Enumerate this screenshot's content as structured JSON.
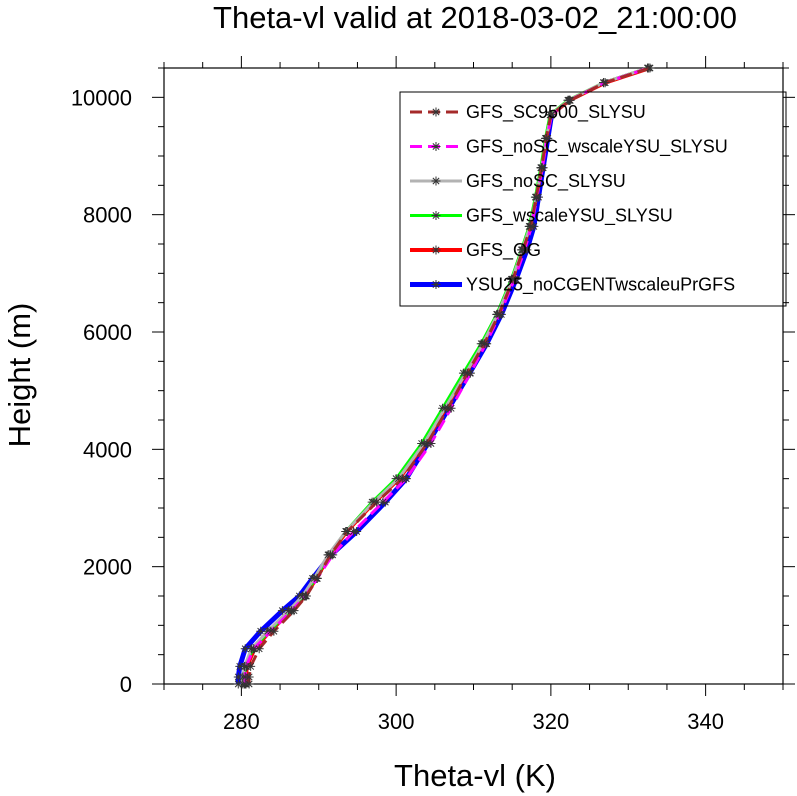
{
  "chart_data": {
    "type": "line",
    "title": "Theta-vl valid at 2018-03-02_21:00:00",
    "xlabel": "Theta-vl (K)",
    "ylabel": "Height (m)",
    "xlim": [
      270,
      350
    ],
    "ylim": [
      0,
      10500
    ],
    "xticks": [
      280,
      300,
      320,
      340
    ],
    "yticks": [
      0,
      2000,
      4000,
      6000,
      8000,
      10000
    ],
    "xtick_labels": [
      "280",
      "300",
      "320",
      "340"
    ],
    "ytick_labels": [
      "0",
      "2000",
      "4000",
      "6000",
      "8000",
      "10000"
    ],
    "grid": false,
    "legend_position": "top-right",
    "series": [
      {
        "name": "GFS_SC9500_SLYSU",
        "color": "#a52a2a",
        "dash": true,
        "points": [
          [
            281.0,
            0
          ],
          [
            281.0,
            120
          ],
          [
            281.2,
            300
          ],
          [
            282.3,
            600
          ],
          [
            284.2,
            900
          ],
          [
            286.8,
            1250
          ],
          [
            288.4,
            1500
          ],
          [
            289.8,
            1800
          ],
          [
            291.5,
            2200
          ],
          [
            293.7,
            2600
          ],
          [
            297.5,
            3100
          ],
          [
            300.8,
            3500
          ],
          [
            304.0,
            4100
          ],
          [
            306.7,
            4700
          ],
          [
            309.2,
            5300
          ],
          [
            311.4,
            5800
          ],
          [
            313.3,
            6300
          ],
          [
            315.1,
            6900
          ],
          [
            316.4,
            7400
          ],
          [
            317.4,
            7800
          ],
          [
            318.1,
            8300
          ],
          [
            318.8,
            8800
          ],
          [
            319.4,
            9300
          ],
          [
            320.0,
            9700
          ],
          [
            322.5,
            9950
          ],
          [
            327.0,
            10250
          ],
          [
            332.8,
            10500
          ]
        ]
      },
      {
        "name": "GFS_noSC_wscaleYSU_SLYSU",
        "color": "#ff00ff",
        "dash": true,
        "points": [
          [
            280.5,
            0
          ],
          [
            280.5,
            120
          ],
          [
            280.6,
            300
          ],
          [
            281.6,
            600
          ],
          [
            283.8,
            900
          ],
          [
            286.5,
            1250
          ],
          [
            288.3,
            1500
          ],
          [
            289.8,
            1800
          ],
          [
            291.8,
            2200
          ],
          [
            294.5,
            2600
          ],
          [
            298.3,
            3100
          ],
          [
            301.3,
            3500
          ],
          [
            304.5,
            4100
          ],
          [
            307.1,
            4700
          ],
          [
            309.6,
            5300
          ],
          [
            311.6,
            5800
          ],
          [
            313.4,
            6300
          ],
          [
            315.3,
            6900
          ],
          [
            316.6,
            7400
          ],
          [
            317.5,
            7800
          ],
          [
            318.2,
            8300
          ],
          [
            318.9,
            8800
          ],
          [
            319.5,
            9300
          ],
          [
            320.1,
            9700
          ],
          [
            322.4,
            9950
          ],
          [
            327.0,
            10250
          ],
          [
            332.6,
            10500
          ]
        ]
      },
      {
        "name": "GFS_noSC_SLYSU",
        "color": "#b3b3b3",
        "dash": false,
        "points": [
          [
            280.2,
            0
          ],
          [
            280.2,
            120
          ],
          [
            280.4,
            300
          ],
          [
            281.3,
            600
          ],
          [
            283.4,
            900
          ],
          [
            286.1,
            1250
          ],
          [
            287.9,
            1500
          ],
          [
            289.4,
            1800
          ],
          [
            291.2,
            2200
          ],
          [
            293.5,
            2600
          ],
          [
            297.1,
            3100
          ],
          [
            300.3,
            3500
          ],
          [
            303.6,
            4100
          ],
          [
            306.3,
            4700
          ],
          [
            309.0,
            5300
          ],
          [
            311.2,
            5800
          ],
          [
            313.1,
            6300
          ],
          [
            315.0,
            6900
          ],
          [
            316.3,
            7400
          ],
          [
            317.3,
            7800
          ],
          [
            318.1,
            8300
          ],
          [
            318.8,
            8800
          ],
          [
            319.4,
            9300
          ],
          [
            320.0,
            9700
          ],
          [
            322.3,
            9950
          ],
          [
            326.8,
            10250
          ],
          [
            332.5,
            10500
          ]
        ]
      },
      {
        "name": "GFS_wscaleYSU_SLYSU",
        "color": "#00ff00",
        "dash": false,
        "points": [
          [
            280.4,
            0
          ],
          [
            280.4,
            120
          ],
          [
            280.5,
            300
          ],
          [
            281.5,
            600
          ],
          [
            283.6,
            900
          ],
          [
            286.3,
            1250
          ],
          [
            288.1,
            1500
          ],
          [
            289.6,
            1800
          ],
          [
            291.3,
            2200
          ],
          [
            293.5,
            2600
          ],
          [
            296.9,
            3100
          ],
          [
            300.0,
            3500
          ],
          [
            303.3,
            4100
          ],
          [
            306.0,
            4700
          ],
          [
            308.7,
            5300
          ],
          [
            311.0,
            5800
          ],
          [
            313.0,
            6300
          ],
          [
            314.9,
            6900
          ],
          [
            316.2,
            7400
          ],
          [
            317.2,
            7800
          ],
          [
            318.0,
            8300
          ],
          [
            318.7,
            8800
          ],
          [
            319.3,
            9300
          ],
          [
            319.9,
            9700
          ],
          [
            322.2,
            9950
          ],
          [
            326.8,
            10250
          ],
          [
            332.5,
            10500
          ]
        ]
      },
      {
        "name": "GFS_OG",
        "color": "#ff0000",
        "dash": false,
        "points": [
          [
            280.6,
            0
          ],
          [
            280.6,
            120
          ],
          [
            280.7,
            300
          ],
          [
            281.7,
            600
          ],
          [
            283.7,
            900
          ],
          [
            286.5,
            1250
          ],
          [
            288.2,
            1500
          ],
          [
            289.7,
            1800
          ],
          [
            291.4,
            2200
          ],
          [
            293.6,
            2600
          ],
          [
            297.2,
            3100
          ],
          [
            300.4,
            3500
          ],
          [
            303.7,
            4100
          ],
          [
            306.4,
            4700
          ],
          [
            309.0,
            5300
          ],
          [
            311.2,
            5800
          ],
          [
            313.1,
            6300
          ],
          [
            315.0,
            6900
          ],
          [
            316.3,
            7400
          ],
          [
            317.3,
            7800
          ],
          [
            318.1,
            8300
          ],
          [
            318.8,
            8800
          ],
          [
            319.4,
            9300
          ],
          [
            320.0,
            9700
          ],
          [
            322.4,
            9950
          ],
          [
            327.0,
            10250
          ],
          [
            332.8,
            10500
          ]
        ]
      },
      {
        "name": "YSU25_noCGENTwscaleuPrGFS",
        "color": "#0000ff",
        "dash": false,
        "points": [
          [
            279.6,
            0
          ],
          [
            279.6,
            120
          ],
          [
            279.8,
            300
          ],
          [
            280.5,
            600
          ],
          [
            282.5,
            900
          ],
          [
            285.3,
            1250
          ],
          [
            287.5,
            1500
          ],
          [
            289.2,
            1800
          ],
          [
            291.6,
            2200
          ],
          [
            294.9,
            2600
          ],
          [
            298.6,
            3100
          ],
          [
            301.3,
            3500
          ],
          [
            304.1,
            4100
          ],
          [
            306.8,
            4700
          ],
          [
            309.5,
            5300
          ],
          [
            311.7,
            5800
          ],
          [
            313.6,
            6300
          ],
          [
            315.5,
            6900
          ],
          [
            316.9,
            7400
          ],
          [
            317.8,
            7800
          ],
          [
            318.4,
            8300
          ],
          [
            319.0,
            8800
          ],
          [
            319.6,
            9300
          ],
          [
            320.1,
            9700
          ]
        ]
      }
    ]
  }
}
